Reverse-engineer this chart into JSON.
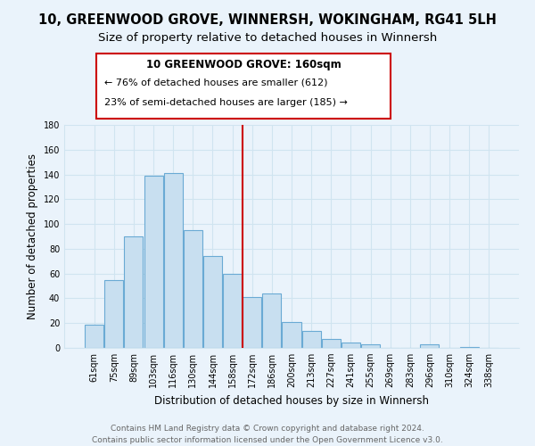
{
  "title": "10, GREENWOOD GROVE, WINNERSH, WOKINGHAM, RG41 5LH",
  "subtitle": "Size of property relative to detached houses in Winnersh",
  "xlabel": "Distribution of detached houses by size in Winnersh",
  "ylabel": "Number of detached properties",
  "bar_labels": [
    "61sqm",
    "75sqm",
    "89sqm",
    "103sqm",
    "116sqm",
    "130sqm",
    "144sqm",
    "158sqm",
    "172sqm",
    "186sqm",
    "200sqm",
    "213sqm",
    "227sqm",
    "241sqm",
    "255sqm",
    "269sqm",
    "283sqm",
    "296sqm",
    "310sqm",
    "324sqm",
    "338sqm"
  ],
  "bar_values": [
    19,
    55,
    90,
    139,
    141,
    95,
    74,
    60,
    41,
    44,
    21,
    14,
    7,
    4,
    3,
    0,
    0,
    3,
    0,
    1,
    0
  ],
  "bar_color": "#c8dff0",
  "bar_edge_color": "#6aaad4",
  "highlight_line_color": "#cc0000",
  "highlight_line_index": 7,
  "annotation_line1": "10 GREENWOOD GROVE: 160sqm",
  "annotation_line2": "← 76% of detached houses are smaller (612)",
  "annotation_line3": "23% of semi-detached houses are larger (185) →",
  "ylim": [
    0,
    180
  ],
  "yticks": [
    0,
    20,
    40,
    60,
    80,
    100,
    120,
    140,
    160,
    180
  ],
  "footer_line1": "Contains HM Land Registry data © Crown copyright and database right 2024.",
  "footer_line2": "Contains public sector information licensed under the Open Government Licence v3.0.",
  "bg_color": "#eaf3fb",
  "grid_color": "#d0e4f0",
  "title_fontsize": 10.5,
  "subtitle_fontsize": 9.5,
  "tick_fontsize": 7,
  "axis_label_fontsize": 8.5,
  "footer_fontsize": 6.5
}
